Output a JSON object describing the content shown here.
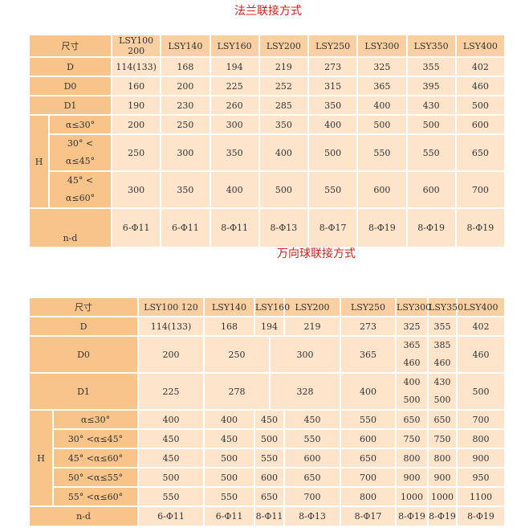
{
  "colors": {
    "header": "#f8c48a",
    "cell": "#fde4cb",
    "title": "#d0201a"
  },
  "t1": {
    "title": "法兰联接方式",
    "size_label": "尺寸",
    "cols": [
      "LSY100 200",
      "LSY140",
      "LSY160",
      "LSY200",
      "LSY250",
      "LSY300",
      "LSY350",
      "LSY400"
    ],
    "D_label": "D",
    "D": [
      "114(133)",
      "168",
      "194",
      "219",
      "273",
      "325",
      "355",
      "402"
    ],
    "D0_label": "D0",
    "D0": [
      "160",
      "200",
      "225",
      "252",
      "315",
      "365",
      "395",
      "460"
    ],
    "D1_label": "D1",
    "D1": [
      "190",
      "230",
      "260",
      "285",
      "350",
      "400",
      "430",
      "500"
    ],
    "H_label": "H",
    "h": [
      {
        "a": "α≤30°",
        "b": "",
        "v": [
          "200",
          "250",
          "300",
          "350",
          "400",
          "500",
          "500",
          "600"
        ]
      },
      {
        "a": "30° <",
        "b": "α≤45°",
        "v": [
          "250",
          "300",
          "350",
          "400",
          "500",
          "550",
          "550",
          "650"
        ]
      },
      {
        "a": "45° <",
        "b": "α≤60°",
        "v": [
          "300",
          "350",
          "400",
          "500",
          "550",
          "600",
          "600",
          "700"
        ]
      }
    ],
    "nd_label": "n-d",
    "nd": [
      "6-Φ11",
      "6-Φ11",
      "8-Φ11",
      "8-Φ13",
      "8-Φ17",
      "8-Φ19",
      "8-Φ19",
      "8-Φ19"
    ]
  },
  "t2": {
    "title": "万向球联接方式",
    "size_label": "尺寸",
    "cols": [
      "LSY100 120",
      "LSY140",
      "LSY160",
      "LSY200",
      "LSY250",
      "LSY300",
      "LSY350",
      "LSY400"
    ],
    "D_label": "D",
    "D": [
      "114(133)",
      "168",
      "194",
      "219",
      "273",
      "325",
      "355",
      "402"
    ],
    "D0_label": "D0",
    "D0": [
      "200",
      "250",
      "300",
      "365",
      [
        "365",
        "460"
      ],
      [
        "385",
        "460"
      ],
      "460"
    ],
    "D1_label": "D1",
    "D1": [
      "225",
      "278",
      "328",
      "400",
      [
        "400",
        "500"
      ],
      [
        "430",
        "500"
      ],
      "500"
    ],
    "H_label": "H",
    "h": [
      {
        "a": "α≤30°",
        "v": [
          "400",
          "400",
          "450",
          "450",
          "550",
          "650",
          "650",
          "700"
        ]
      },
      {
        "a": "30° <α≤45°",
        "v": [
          "450",
          "450",
          "500",
          "550",
          "600",
          "750",
          "750",
          "800"
        ]
      },
      {
        "a": "45° <α≤60°",
        "v": [
          "450",
          "500",
          "550",
          "600",
          "650",
          "800",
          "800",
          "900"
        ]
      },
      {
        "a": "50° <α≤55°",
        "v": [
          "500",
          "500",
          "600",
          "650",
          "700",
          "900",
          "900",
          "950"
        ]
      },
      {
        "a": "55° <α≤60°",
        "v": [
          "550",
          "550",
          "650",
          "700",
          "800",
          "1000",
          "1000",
          "1100"
        ]
      }
    ],
    "nd_label": "n-d",
    "nd": [
      "6-Φ11",
      "6-Φ11",
      "8-Φ11",
      "8-Φ13",
      "8-Φ17",
      "8-Φ19",
      "8-Φ19",
      "8-Φ19"
    ]
  }
}
